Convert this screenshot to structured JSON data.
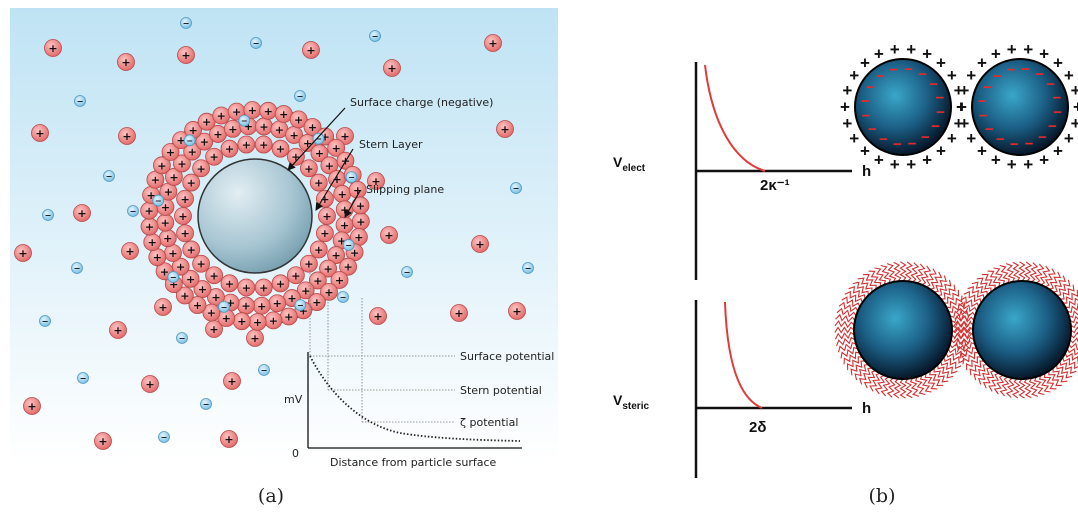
{
  "panel_a": {
    "caption": "(a)",
    "labels": {
      "surface_charge": "Surface charge (negative)",
      "stern_layer": "Stern Layer",
      "slipping_plane": "Slipping plane",
      "surface_potential": "Surface potential",
      "stern_potential": "Stern potential",
      "zeta_potential": "ζ potential",
      "y_axis": "mV",
      "origin": "0",
      "x_axis": "Distance from particle surface"
    },
    "ion_symbols": {
      "positive": "+",
      "negative": "−"
    },
    "colors": {
      "background_top": "#bfe3f4",
      "background_bottom": "#ffffff",
      "cation": "#e97474",
      "anion": "#7cc4e8",
      "particle": "#a9c9d6"
    }
  },
  "panel_b": {
    "caption": "(b)",
    "electrostatic": {
      "v_label": "V",
      "v_sub": "elect",
      "h_label": "h",
      "distance_label": "2κ⁻¹"
    },
    "steric": {
      "v_label": "V",
      "v_sub": "steric",
      "h_label": "h",
      "distance_label": "2δ"
    },
    "charge_symbols": {
      "positive": "+",
      "negative": "−"
    },
    "colors": {
      "curve": "#e03a3a",
      "particle": "#1e6c96",
      "polymer": "#d23030"
    }
  }
}
